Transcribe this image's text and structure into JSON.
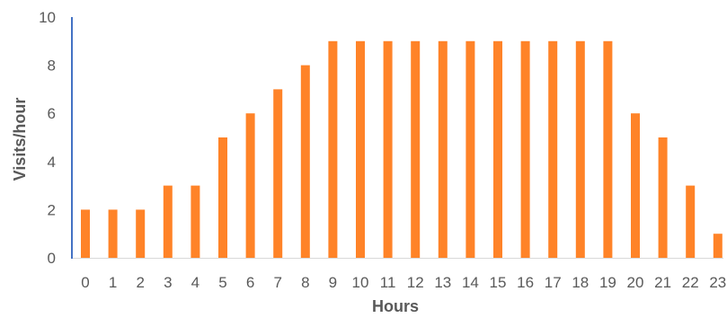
{
  "chart_data": {
    "type": "bar",
    "title": "",
    "xlabel": "Hours",
    "ylabel": "Visits/hour",
    "categories": [
      "0",
      "1",
      "2",
      "3",
      "4",
      "5",
      "6",
      "7",
      "8",
      "9",
      "10",
      "11",
      "12",
      "13",
      "14",
      "15",
      "16",
      "17",
      "18",
      "19",
      "20",
      "21",
      "22",
      "23"
    ],
    "values": [
      2,
      2,
      2,
      3,
      3,
      5,
      6,
      7,
      8,
      9,
      9,
      9,
      9,
      9,
      9,
      9,
      9,
      9,
      9,
      9,
      6,
      5,
      3,
      1
    ],
    "ylim": [
      0,
      10
    ],
    "yticks": [
      0,
      2,
      4,
      6,
      8,
      10
    ],
    "grid": false,
    "legend": "none",
    "colors": {
      "bar": "#FF8328",
      "y_axis_line": "#4472C4",
      "x_axis_line": "#D9D9D9",
      "text": "#595959"
    }
  }
}
